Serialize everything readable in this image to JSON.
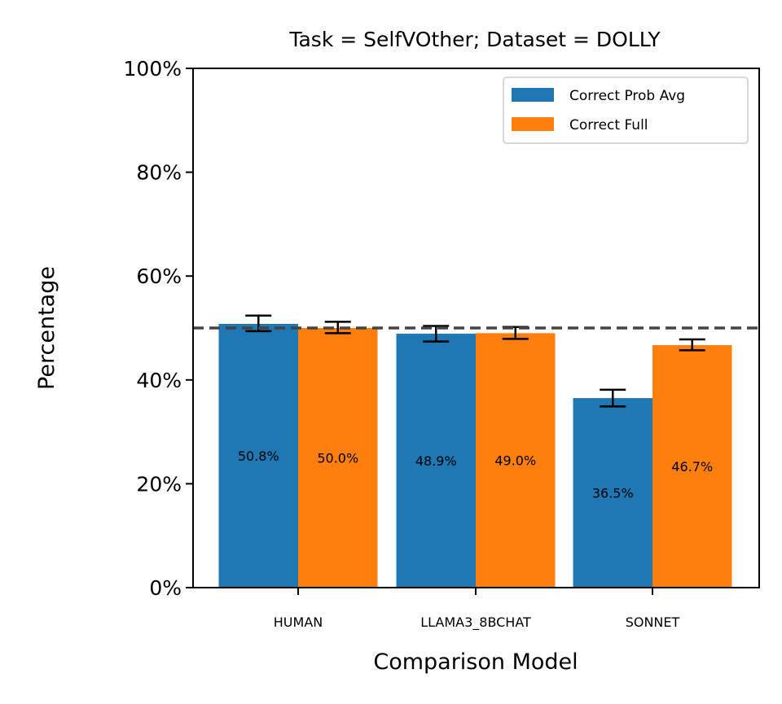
{
  "chart_data": {
    "type": "bar",
    "title": "Task = SelfVOther;  Dataset = DOLLY",
    "xlabel": "Comparison Model",
    "ylabel": "Percentage",
    "ylim": [
      0,
      100
    ],
    "y_ticks": [
      {
        "value": 0,
        "label": "0%"
      },
      {
        "value": 20,
        "label": "20%"
      },
      {
        "value": 40,
        "label": "40%"
      },
      {
        "value": 60,
        "label": "60%"
      },
      {
        "value": 80,
        "label": "80%"
      },
      {
        "value": 100,
        "label": "100%"
      }
    ],
    "categories": [
      "HUMAN",
      "LLAMA3_8BCHAT",
      "SONNET"
    ],
    "series": [
      {
        "name": "Correct Prob Avg",
        "color": "#1f77b4",
        "values": [
          50.8,
          48.9,
          36.5
        ],
        "labels": [
          "50.8%",
          "48.9%",
          "36.5%"
        ],
        "error": [
          [
            49.4,
            52.4
          ],
          [
            47.4,
            50.4
          ],
          [
            34.9,
            38.1
          ]
        ]
      },
      {
        "name": "Correct Full",
        "color": "#ff7f0e",
        "values": [
          50.0,
          49.0,
          46.7
        ],
        "labels": [
          "50.0%",
          "49.0%",
          "46.7%"
        ],
        "error": [
          [
            49.0,
            51.2
          ],
          [
            47.9,
            50.2
          ],
          [
            45.7,
            47.8
          ]
        ]
      }
    ],
    "reference_line": {
      "value": 50,
      "style": "dashed",
      "color": "#444444"
    },
    "legend_position": "top-right",
    "grid": false
  }
}
